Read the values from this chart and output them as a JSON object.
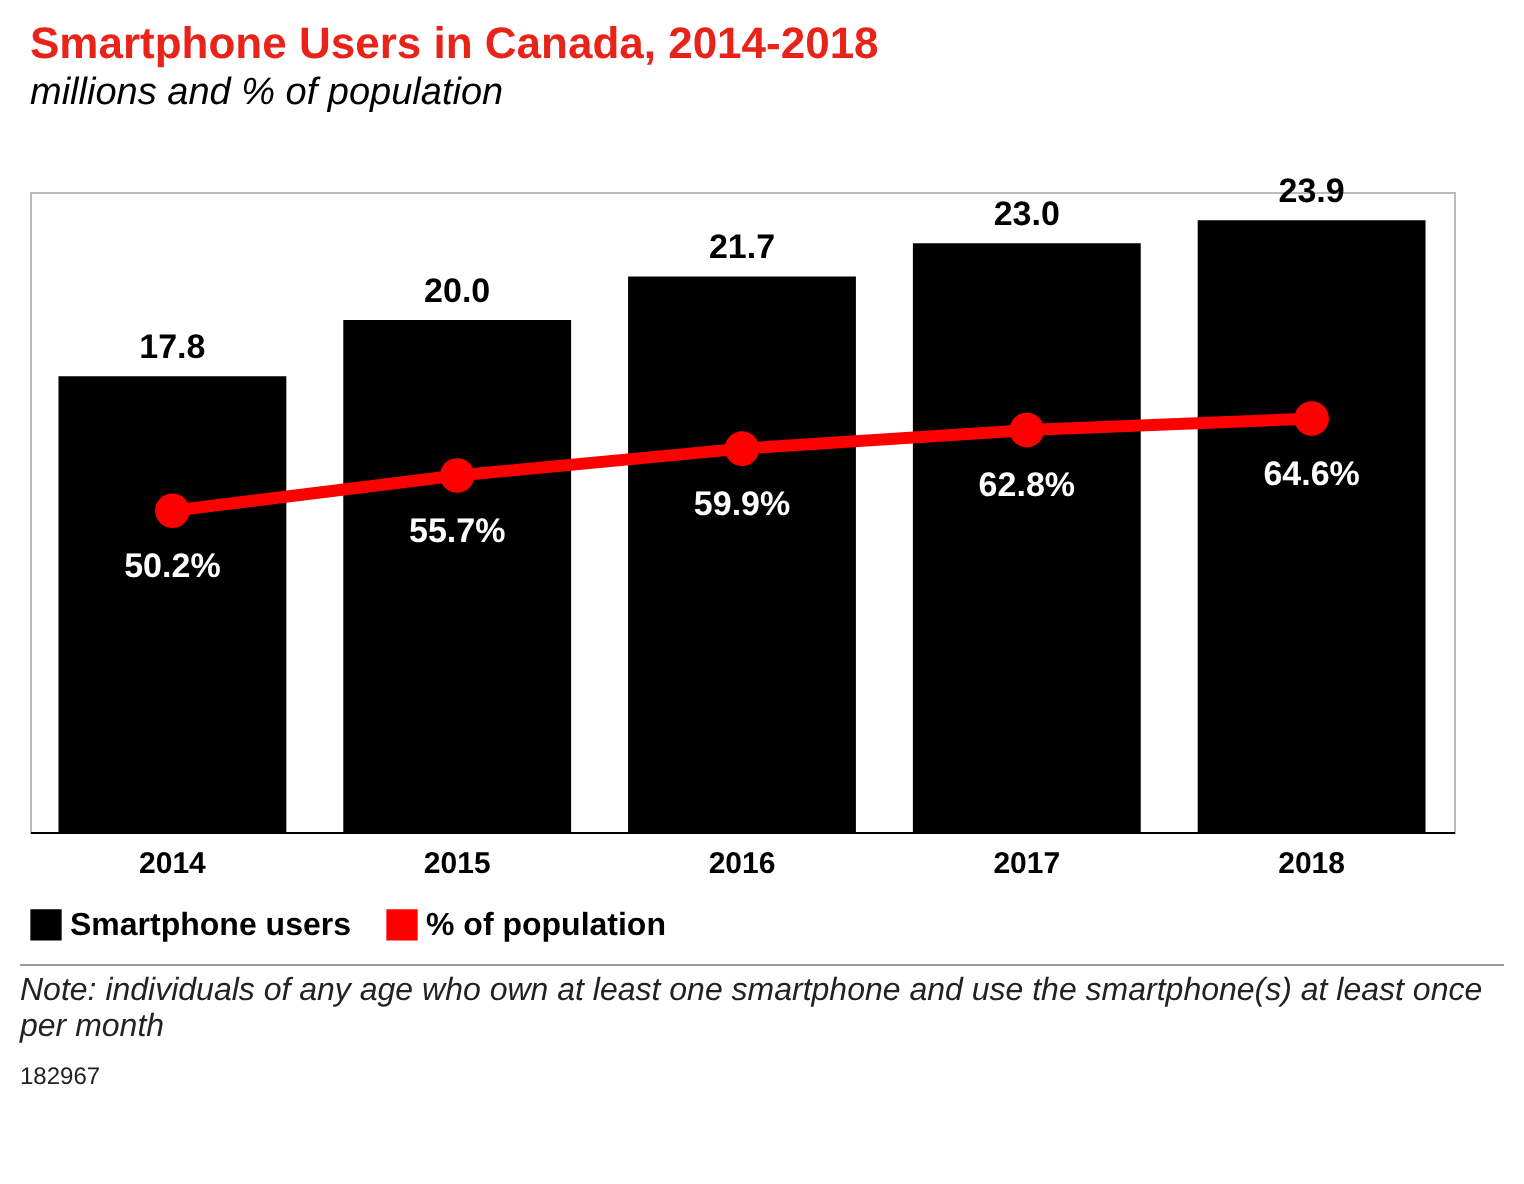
{
  "chart_data": {
    "type": "bar",
    "title": "Smartphone Users in Canada, 2014-2018",
    "subtitle": "millions and % of population",
    "categories": [
      "2014",
      "2015",
      "2016",
      "2017",
      "2018"
    ],
    "series": [
      {
        "name": "Smartphone users",
        "color": "#000000",
        "values": [
          17.8,
          20.0,
          21.7,
          23.0,
          23.9
        ],
        "value_labels": [
          "17.8",
          "20.0",
          "21.7",
          "23.0",
          "23.9"
        ]
      },
      {
        "name": "% of population",
        "color": "#ff0000",
        "type": "line",
        "axis": "y2",
        "values": [
          50.2,
          55.7,
          59.9,
          62.8,
          64.6
        ],
        "value_labels": [
          "50.2%",
          "55.7%",
          "59.9%",
          "62.8%",
          "64.6%"
        ]
      }
    ],
    "ylim": [
      0,
      25
    ],
    "y2lim": [
      0,
      100
    ],
    "tick_labels": "x",
    "legend": "bottom left",
    "marker": "circle",
    "line_style": "solid",
    "annotations": [
      "Note: individuals of any age who own at least one smartphone and use the smartphone(s) at least once per month",
      "182967"
    ]
  }
}
